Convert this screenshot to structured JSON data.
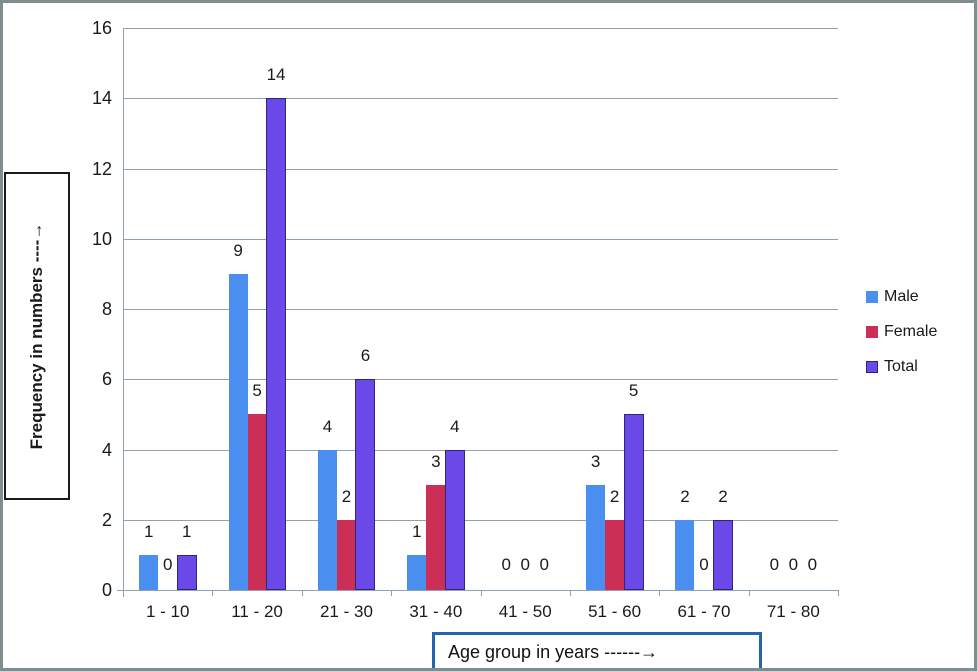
{
  "chart_data": {
    "type": "bar",
    "title": "",
    "categories": [
      "1 - 10",
      "11 - 20",
      "21 - 30",
      "31 - 40",
      "41 - 50",
      "51 - 60",
      "61 - 70",
      "71 - 80"
    ],
    "series": [
      {
        "name": "Male",
        "color": "#4a8ff0",
        "values": [
          1,
          9,
          4,
          1,
          0,
          3,
          2,
          0
        ]
      },
      {
        "name": "Female",
        "color": "#cb2f55",
        "values": [
          0,
          5,
          2,
          3,
          0,
          2,
          0,
          0
        ]
      },
      {
        "name": "Total",
        "color": "#6a49e8",
        "border_color": "#2b2878",
        "values": [
          1,
          14,
          6,
          4,
          0,
          5,
          2,
          0
        ]
      }
    ],
    "ylabel": "Frequency in numbers ----→",
    "xlabel": "Age group in years ------→",
    "yticks": [
      0,
      2,
      4,
      6,
      8,
      10,
      12,
      14,
      16
    ],
    "ylim": [
      0,
      16
    ],
    "grid": true,
    "data_labels": true,
    "legend_position": "right"
  },
  "colors": {
    "grid": "#8fa2ad",
    "axis": "#8fa2ad",
    "text": "#1a1a1a",
    "xlabel_box_border": "#2565ae",
    "ylabel_box_border": "#1a1a1a",
    "outer_border": "#7f8d8e",
    "background": "#ffffff"
  }
}
